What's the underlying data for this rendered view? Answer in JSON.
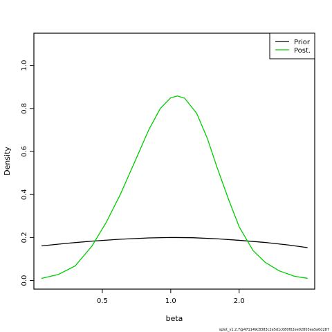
{
  "chart_data": {
    "type": "line",
    "xlabel": "beta",
    "ylabel": "Density",
    "x_scale": "log",
    "x_ticks": [
      {
        "value": 0.5,
        "label": "0.5"
      },
      {
        "value": 1.0,
        "label": "1.0"
      },
      {
        "value": 2.0,
        "label": "2.0"
      }
    ],
    "y_ticks": [
      {
        "value": 0.0,
        "label": "0.0"
      },
      {
        "value": 0.2,
        "label": "0.2"
      },
      {
        "value": 0.4,
        "label": "0.4"
      },
      {
        "value": 0.6,
        "label": "0.6"
      },
      {
        "value": 0.8,
        "label": "0.8"
      },
      {
        "value": 1.0,
        "label": "1.0"
      }
    ],
    "xlim": [
      0.25,
      4.3
    ],
    "ylim": [
      -0.04,
      1.15
    ],
    "legend_position": "top-right",
    "series": [
      {
        "name": "Prior",
        "color": "#000000",
        "x": [
          0.27,
          0.35,
          0.45,
          0.6,
          0.8,
          1.0,
          1.25,
          1.6,
          2.0,
          2.6,
          3.3,
          4.0
        ],
        "y": [
          0.161,
          0.173,
          0.183,
          0.192,
          0.198,
          0.2,
          0.199,
          0.194,
          0.187,
          0.177,
          0.165,
          0.153
        ]
      },
      {
        "name": "Post.",
        "color": "#00cc00",
        "x": [
          0.27,
          0.32,
          0.38,
          0.45,
          0.52,
          0.6,
          0.7,
          0.8,
          0.9,
          1.0,
          1.07,
          1.15,
          1.3,
          1.45,
          1.6,
          1.8,
          2.0,
          2.3,
          2.6,
          3.0,
          3.5,
          4.0
        ],
        "y": [
          0.01,
          0.028,
          0.068,
          0.16,
          0.27,
          0.4,
          0.56,
          0.7,
          0.8,
          0.85,
          0.858,
          0.848,
          0.778,
          0.66,
          0.525,
          0.375,
          0.25,
          0.14,
          0.085,
          0.045,
          0.02,
          0.01
        ]
      }
    ]
  },
  "footer": {
    "caption": "splot_v1.2.7@471149c8383c2e5d1c080f02ee02803ea5a0d287"
  }
}
